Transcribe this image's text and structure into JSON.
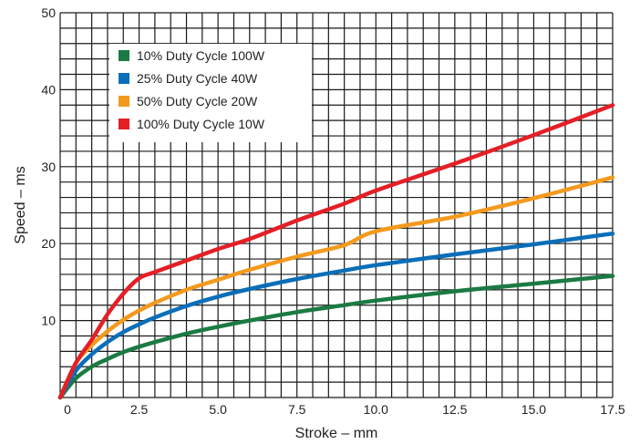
{
  "chart_data": {
    "type": "line",
    "xlabel": "Stroke – mm",
    "ylabel": "Speed – ms",
    "xlim": [
      0,
      17.5
    ],
    "ylim": [
      0,
      50
    ],
    "x_ticks": [
      "0",
      "2.5",
      "5.0",
      "7.5",
      "10.0",
      "12.5",
      "15.0",
      "17.5"
    ],
    "y_ticks": [
      "10",
      "20",
      "30",
      "40",
      "50"
    ],
    "grid": true,
    "legend_position": "top-left",
    "series": [
      {
        "name": "10% Duty Cycle 100W",
        "color": "#1b7a43",
        "x": [
          0,
          0.5,
          1,
          1.5,
          2,
          2.5,
          3,
          4,
          5,
          6,
          7.5,
          9,
          10,
          12.5,
          15,
          17.5
        ],
        "y": [
          0,
          2.5,
          4,
          5,
          5.9,
          6.6,
          7.2,
          8.3,
          9.2,
          10,
          11.1,
          12,
          12.6,
          13.8,
          14.8,
          15.8
        ]
      },
      {
        "name": "25% Duty Cycle 40W",
        "color": "#0a6eb8",
        "x": [
          0,
          0.5,
          1,
          1.5,
          2,
          2.5,
          3,
          4,
          5,
          6,
          7.5,
          9,
          10,
          12.5,
          15,
          17.5
        ],
        "y": [
          0,
          3.5,
          5.6,
          7.2,
          8.5,
          9.5,
          10.4,
          11.9,
          13.1,
          14.1,
          15.4,
          16.5,
          17.2,
          18.6,
          19.9,
          21.3
        ]
      },
      {
        "name": "50% Duty Cycle 20W",
        "color": "#f39a1e",
        "x": [
          0,
          0.5,
          1,
          1.5,
          2,
          2.5,
          3,
          4,
          5,
          6,
          7.5,
          9,
          10,
          12.5,
          15,
          17.5
        ],
        "y": [
          0,
          4.5,
          6.8,
          8.6,
          10.1,
          11.3,
          12.3,
          14,
          15.3,
          16.6,
          18.3,
          19.8,
          21.6,
          23.5,
          25.9,
          28.6
        ]
      },
      {
        "name": "100% Duty Cycle 10W",
        "color": "#e41f26",
        "x": [
          0,
          0.5,
          1,
          1.5,
          2,
          2.5,
          3,
          4,
          5,
          6,
          7.5,
          9,
          10,
          12.5,
          15,
          17.5
        ],
        "y": [
          0,
          4.5,
          7.5,
          10.8,
          13.5,
          15.5,
          16.3,
          17.8,
          19.3,
          20.6,
          23,
          25.2,
          26.9,
          30.4,
          34.1,
          38
        ]
      }
    ]
  }
}
